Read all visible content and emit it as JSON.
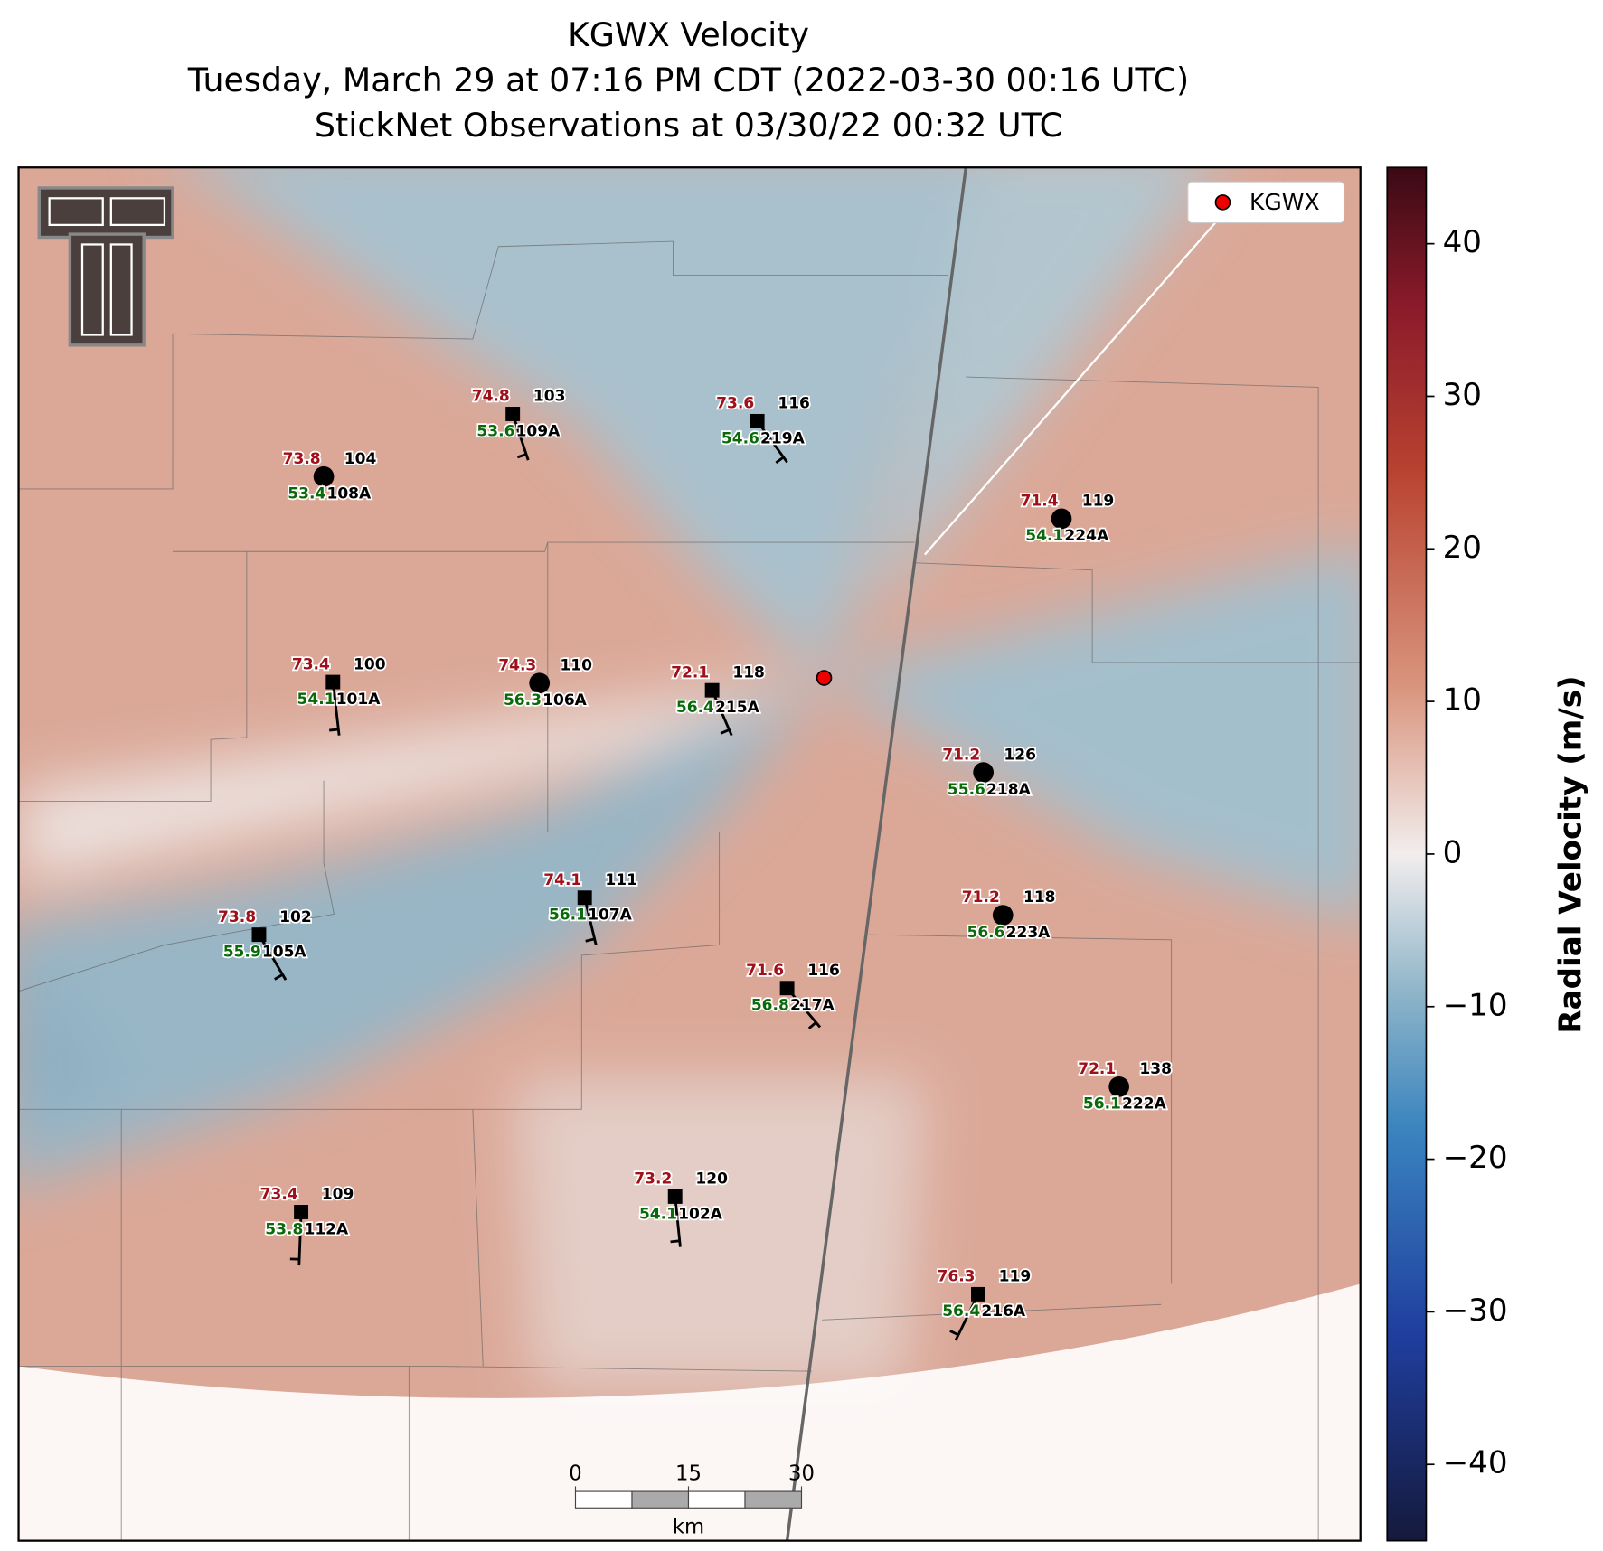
{
  "title": [
    "KGWX Velocity",
    "Tuesday, March 29 at 07:16 PM CDT (2022-03-30 00:16 UTC)",
    "StickNet Observations at 03/30/22 00:32 UTC"
  ],
  "legend": {
    "label": "KGWX"
  },
  "stations": [
    {
      "id": "108A",
      "temp": 73.8,
      "dewpoint": 53.4,
      "number": 104
    },
    {
      "id": "109A",
      "temp": 74.8,
      "dewpoint": 53.6,
      "number": 103
    },
    {
      "id": "219A",
      "temp": 73.6,
      "dewpoint": 54.6,
      "number": 116
    },
    {
      "id": "224A",
      "temp": 71.4,
      "dewpoint": 54.1,
      "number": 119
    },
    {
      "id": "101A",
      "temp": 73.4,
      "dewpoint": 54.1,
      "number": 100
    },
    {
      "id": "106A",
      "temp": 74.3,
      "dewpoint": 56.3,
      "number": 110
    },
    {
      "id": "215A",
      "temp": 72.1,
      "dewpoint": 56.4,
      "number": 118
    },
    {
      "id": "218A",
      "temp": 71.2,
      "dewpoint": 55.6,
      "number": 126
    },
    {
      "id": "107A",
      "temp": 74.1,
      "dewpoint": 56.1,
      "number": 111
    },
    {
      "id": "223A",
      "temp": 71.2,
      "dewpoint": 56.6,
      "number": 118
    },
    {
      "id": "105A",
      "temp": 73.8,
      "dewpoint": 55.9,
      "number": 102
    },
    {
      "id": "217A",
      "temp": 71.6,
      "dewpoint": 56.8,
      "number": 116
    },
    {
      "id": "222A",
      "temp": 72.1,
      "dewpoint": 56.1,
      "number": 138
    },
    {
      "id": "112A",
      "temp": 73.4,
      "dewpoint": 53.8,
      "number": 109
    },
    {
      "id": "102A",
      "temp": 73.2,
      "dewpoint": 54.1,
      "number": 120
    },
    {
      "id": "216A",
      "temp": 76.3,
      "dewpoint": 56.4,
      "number": 119
    }
  ],
  "colorbar": {
    "label": "Radial Velocity (m/s)",
    "lim": [
      -45,
      45
    ],
    "ticks": [
      {
        "value": -40,
        "label": "−40"
      },
      {
        "value": -30,
        "label": "−30"
      },
      {
        "value": -20,
        "label": "−20"
      },
      {
        "value": -10,
        "label": "−10"
      },
      0,
      10,
      20,
      30,
      40
    ]
  },
  "scale_bar": {
    "ticks": [
      0,
      15,
      30
    ],
    "unit": "km"
  }
}
